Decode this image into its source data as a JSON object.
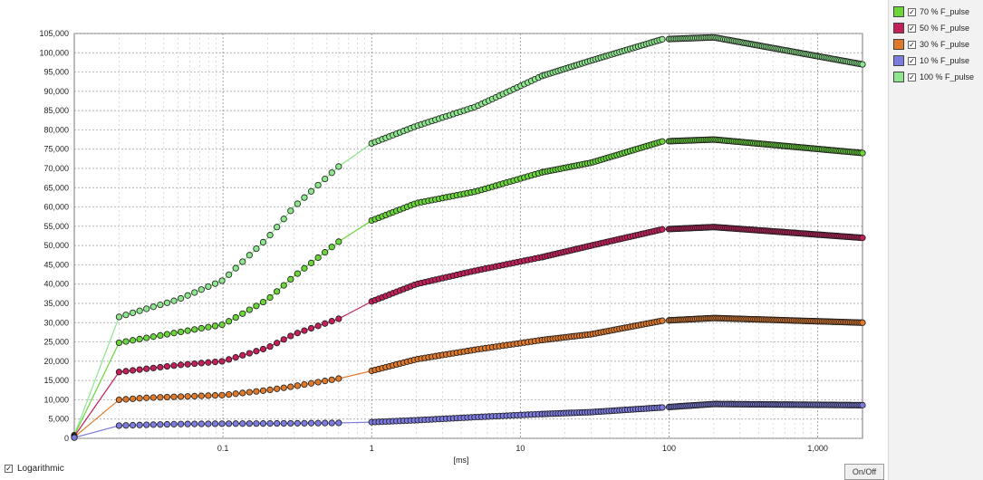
{
  "chart_data": {
    "type": "line",
    "xlabel": "[ms]",
    "ylabel": "",
    "x_scale": "log",
    "xlim": [
      0.01,
      2000
    ],
    "ylim": [
      0,
      105000
    ],
    "x_ticks": [
      0.1,
      1,
      10,
      100,
      1000
    ],
    "x_tick_labels": [
      "0.1",
      "1",
      "10",
      "100",
      "1,000"
    ],
    "y_ticks": [
      0,
      5000,
      10000,
      15000,
      20000,
      25000,
      30000,
      35000,
      40000,
      45000,
      50000,
      55000,
      60000,
      65000,
      70000,
      75000,
      80000,
      85000,
      90000,
      95000,
      100000,
      105000
    ],
    "y_tick_labels": [
      "0",
      "5,000",
      "10,000",
      "15,000",
      "20,000",
      "25,000",
      "30,000",
      "35,000",
      "40,000",
      "45,000",
      "50,000",
      "55,000",
      "60,000",
      "65,000",
      "70,000",
      "75,000",
      "80,000",
      "85,000",
      "90,000",
      "95,000",
      "100,000",
      "105,000"
    ],
    "grid": true,
    "legend_position": "right",
    "x": [
      0.01,
      0.02,
      0.03,
      0.05,
      0.1,
      0.2,
      0.3,
      0.6,
      1,
      2,
      5,
      14,
      30,
      90,
      200,
      2000
    ],
    "series": [
      {
        "name": "100 % F_pulse",
        "color": "#8ee68e",
        "values": [
          800,
          31500,
          33500,
          36000,
          41000,
          52000,
          60000,
          70500,
          76500,
          81000,
          86000,
          94000,
          98000,
          103500,
          104000,
          97000
        ]
      },
      {
        "name": "70 % F_pulse",
        "color": "#6ad63a",
        "values": [
          700,
          24800,
          26000,
          27500,
          29500,
          36000,
          42000,
          51000,
          56500,
          61000,
          64000,
          69000,
          71500,
          77000,
          77500,
          74000
        ]
      },
      {
        "name": "50 % F_pulse",
        "color": "#c21f5b",
        "values": [
          500,
          17200,
          18000,
          19000,
          20000,
          23500,
          27000,
          31000,
          35500,
          40000,
          43500,
          47000,
          50000,
          54200,
          54800,
          52000
        ]
      },
      {
        "name": "30 % F_pulse",
        "color": "#e0792a",
        "values": [
          300,
          10000,
          10500,
          10800,
          11200,
          12500,
          13500,
          15500,
          17500,
          20500,
          23000,
          25500,
          27000,
          30500,
          31200,
          30000
        ]
      },
      {
        "name": "10 % F_pulse",
        "color": "#7b7be0",
        "values": [
          200,
          3300,
          3500,
          3700,
          3800,
          3850,
          3900,
          4000,
          4200,
          4700,
          5500,
          6300,
          6800,
          8000,
          8900,
          8600
        ]
      }
    ]
  },
  "legend": {
    "items": [
      {
        "label": "70 % F_pulse",
        "color": "#6ad63a",
        "checked": "✓"
      },
      {
        "label": "50 % F_pulse",
        "color": "#c21f5b",
        "checked": "✓"
      },
      {
        "label": "30 % F_pulse",
        "color": "#e0792a",
        "checked": "✓"
      },
      {
        "label": "10 % F_pulse",
        "color": "#7b7be0",
        "checked": "✓"
      },
      {
        "label": "100 % F_pulse",
        "color": "#8ee68e",
        "checked": "✓"
      }
    ]
  },
  "controls": {
    "logarithmic_label": "Logarithmic",
    "logarithmic_checked": "✓",
    "onoff_label": "On/Off"
  }
}
